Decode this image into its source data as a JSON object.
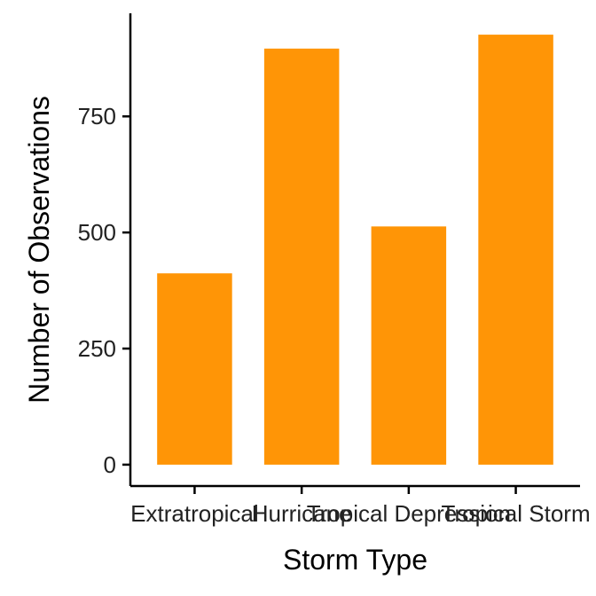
{
  "chart_data": {
    "type": "bar",
    "xlabel": "Storm Type",
    "ylabel": "Number of Observations",
    "categories": [
      "Extratropical",
      "Hurricane",
      "Tropical Depression",
      "Tropical Storm"
    ],
    "values": [
      412,
      896,
      513,
      926
    ],
    "ylim": [
      -46,
      972
    ],
    "yticks": [
      0,
      250,
      500,
      750
    ],
    "bar_color": "#FF9506",
    "grid": false,
    "legend": "none"
  }
}
